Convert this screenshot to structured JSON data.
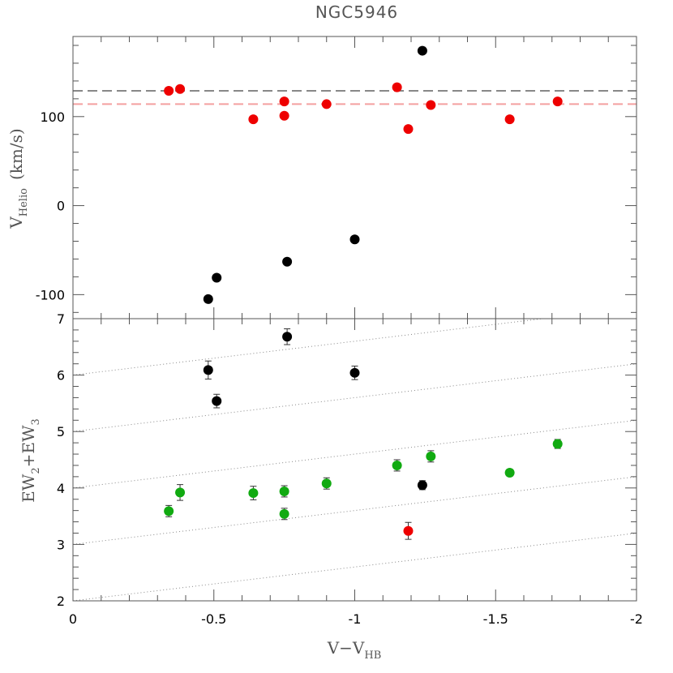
{
  "title": "NGC5946",
  "colors": {
    "red": "#ee0000",
    "black": "#000000",
    "green": "#11aa11",
    "gray_line": "#888888",
    "pink_line": "#f4a0a0",
    "dotted": "#888888"
  },
  "chart_data": [
    {
      "type": "scatter",
      "panel": "top",
      "title": "NGC5946",
      "ylabel": {
        "main": "V",
        "sub": "Helio",
        "suffix": "(km/s)"
      },
      "xlim": [
        0,
        -2
      ],
      "ylim": [
        -127,
        190
      ],
      "yticks": [
        -100,
        0,
        100
      ],
      "hlines": [
        {
          "y": 129,
          "color": "gray",
          "style": "dashed"
        },
        {
          "y": 114,
          "color": "pink",
          "style": "dashed"
        }
      ],
      "series": [
        {
          "color": "red",
          "x": [
            -0.34,
            -0.38,
            -0.64,
            -0.75,
            -0.75,
            -0.9,
            -1.15,
            -1.19,
            -1.27,
            -1.55,
            -1.72
          ],
          "y": [
            129,
            131,
            97,
            117,
            101,
            114,
            133,
            86,
            113,
            97,
            117
          ]
        },
        {
          "color": "black",
          "x": [
            -0.48,
            -0.51,
            -0.76,
            -1.0,
            -1.24
          ],
          "y": [
            -105,
            -81,
            -63,
            -38,
            174
          ]
        }
      ]
    },
    {
      "type": "scatter",
      "panel": "bottom",
      "xlabel": {
        "main": "V−V",
        "sub": "HB"
      },
      "ylabel": {
        "main": "EW",
        "sub1": "2",
        "mid": "+EW",
        "sub2": "3"
      },
      "xlim": [
        0,
        -2
      ],
      "ylim": [
        2,
        7
      ],
      "xticks": [
        0,
        -0.5,
        -1,
        -1.5,
        -2
      ],
      "yticks": [
        2,
        3,
        4,
        5,
        6,
        7
      ],
      "dotted_lines": {
        "intercepts": [
          2,
          3,
          4,
          5,
          6
        ],
        "slope": -0.6
      },
      "series": [
        {
          "color": "black",
          "x": [
            -0.48,
            -0.51,
            -0.76,
            -1.0,
            -1.24
          ],
          "y": [
            6.09,
            5.54,
            6.68,
            6.04,
            4.05
          ],
          "err": [
            0.16,
            0.12,
            0.14,
            0.12,
            0.08
          ]
        },
        {
          "color": "green",
          "x": [
            -0.34,
            -0.38,
            -0.64,
            -0.75,
            -0.75,
            -0.9,
            -1.15,
            -1.27,
            -1.55,
            -1.72
          ],
          "y": [
            3.59,
            3.92,
            3.91,
            3.94,
            3.54,
            4.08,
            4.4,
            4.56,
            4.27,
            4.78
          ],
          "err": [
            0.1,
            0.14,
            0.12,
            0.1,
            0.1,
            0.1,
            0.1,
            0.1,
            0.06,
            0.08
          ]
        },
        {
          "color": "red",
          "x": [
            -1.19
          ],
          "y": [
            3.24
          ],
          "err": [
            0.15
          ]
        }
      ]
    }
  ]
}
